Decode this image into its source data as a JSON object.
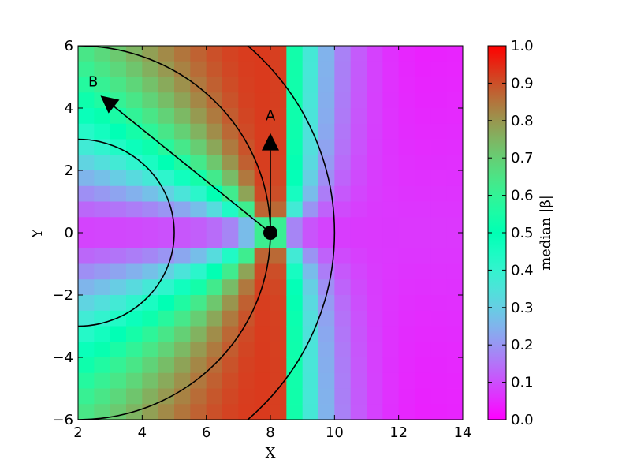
{
  "chart_data": {
    "type": "heatmap",
    "title": "",
    "xlabel": "X",
    "ylabel": "Y",
    "xlim": [
      2,
      14
    ],
    "ylim": [
      -6,
      6
    ],
    "x_ticks": [
      2,
      4,
      6,
      8,
      10,
      12,
      14
    ],
    "y_ticks": [
      -6,
      -4,
      -2,
      0,
      2,
      4,
      6
    ],
    "grid_cells": {
      "nx": 24,
      "ny": 24
    },
    "colorbar": {
      "label": "median |β|",
      "range": [
        0.0,
        1.0
      ],
      "ticks": [
        0.0,
        0.1,
        0.2,
        0.3,
        0.4,
        0.5,
        0.6,
        0.7,
        0.8,
        0.9,
        1.0
      ],
      "tick_labels": [
        "0.0",
        "0.1",
        "0.2",
        "0.3",
        "0.4",
        "0.5",
        "0.6",
        "0.7",
        "0.8",
        "0.9",
        "1.0"
      ],
      "colormap": "rainbow"
    },
    "source_point": {
      "x": 8,
      "y": 0
    },
    "arrows": [
      {
        "label": "A",
        "from": {
          "x": 8,
          "y": 0
        },
        "to": {
          "x": 8,
          "y": 3.2
        }
      },
      {
        "label": "B",
        "from": {
          "x": 8,
          "y": 0
        },
        "to": {
          "x": 2.7,
          "y": 4.4
        }
      }
    ],
    "circles": [
      {
        "center": {
          "x": 2,
          "y": 0
        },
        "radius": 3.0
      },
      {
        "center": {
          "x": 2,
          "y": 0
        },
        "radius": 6.0
      },
      {
        "center": {
          "x": 2,
          "y": 0
        },
        "radius": 8.0
      }
    ]
  }
}
